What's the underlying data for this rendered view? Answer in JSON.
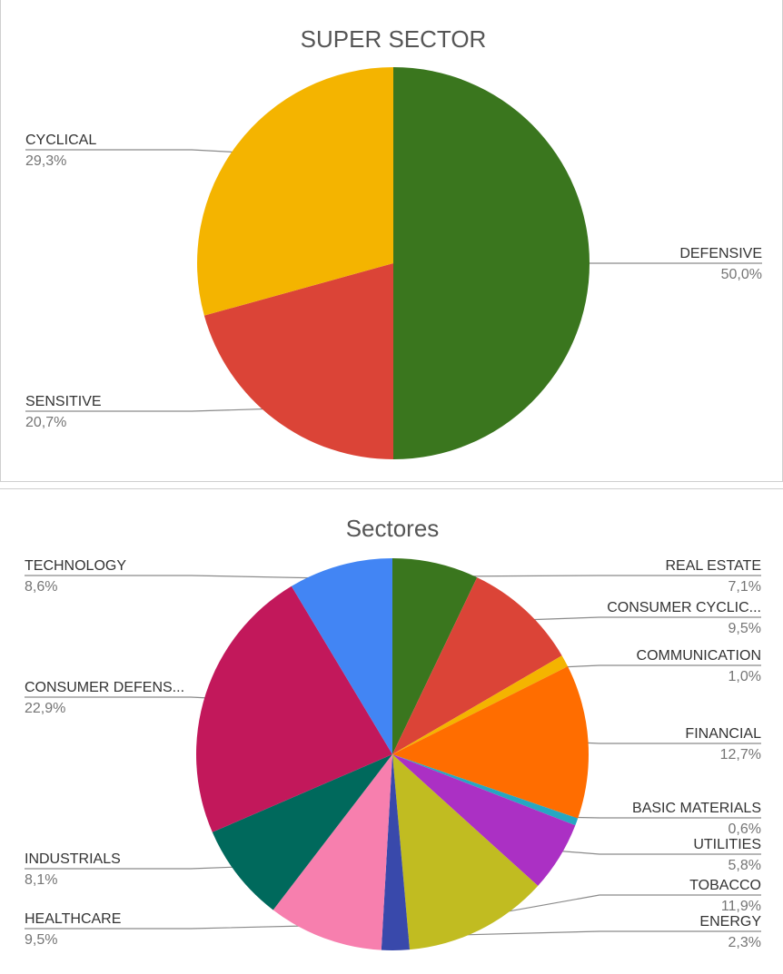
{
  "chart_data": [
    {
      "type": "pie",
      "title": "SUPER SECTOR",
      "slices": [
        {
          "label": "DEFENSIVE",
          "value": 50.0,
          "display": "50,0%",
          "color": "#3a761e",
          "side": "right"
        },
        {
          "label": "SENSITIVE",
          "value": 20.7,
          "display": "20,7%",
          "color": "#db4437",
          "side": "left"
        },
        {
          "label": "CYCLICAL",
          "value": 29.3,
          "display": "29,3%",
          "color": "#f4b400",
          "side": "left"
        }
      ]
    },
    {
      "type": "pie",
      "title": "Sectores",
      "slices": [
        {
          "label": "REAL ESTATE",
          "value": 7.1,
          "display": "7,1%",
          "color": "#3a761e",
          "side": "right"
        },
        {
          "label": "CONSUMER CYCLIC...",
          "value": 9.5,
          "display": "9,5%",
          "color": "#db4437",
          "side": "right"
        },
        {
          "label": "COMMUNICATION",
          "value": 1.0,
          "display": "1,0%",
          "color": "#f4b400",
          "side": "right"
        },
        {
          "label": "FINANCIAL",
          "value": 12.7,
          "display": "12,7%",
          "color": "#ff6d00",
          "side": "right"
        },
        {
          "label": "BASIC MATERIALS",
          "value": 0.6,
          "display": "0,6%",
          "color": "#26a7c2",
          "side": "right"
        },
        {
          "label": "UTILITIES",
          "value": 5.8,
          "display": "5,8%",
          "color": "#ab30c4",
          "side": "right"
        },
        {
          "label": "TOBACCO",
          "value": 11.9,
          "display": "11,9%",
          "color": "#c1bc21",
          "side": "right"
        },
        {
          "label": "ENERGY",
          "value": 2.3,
          "display": "2,3%",
          "color": "#3949ab",
          "side": "right"
        },
        {
          "label": "HEALTHCARE",
          "value": 9.5,
          "display": "9,5%",
          "color": "#f77fae",
          "side": "left"
        },
        {
          "label": "INDUSTRIALS",
          "value": 8.1,
          "display": "8,1%",
          "color": "#00695c",
          "side": "left"
        },
        {
          "label": "CONSUMER DEFENS...",
          "value": 22.9,
          "display": "22,9%",
          "color": "#c2185b",
          "side": "left"
        },
        {
          "label": "TECHNOLOGY",
          "value": 8.6,
          "display": "8,6%",
          "color": "#4285f4",
          "side": "left"
        }
      ]
    }
  ]
}
